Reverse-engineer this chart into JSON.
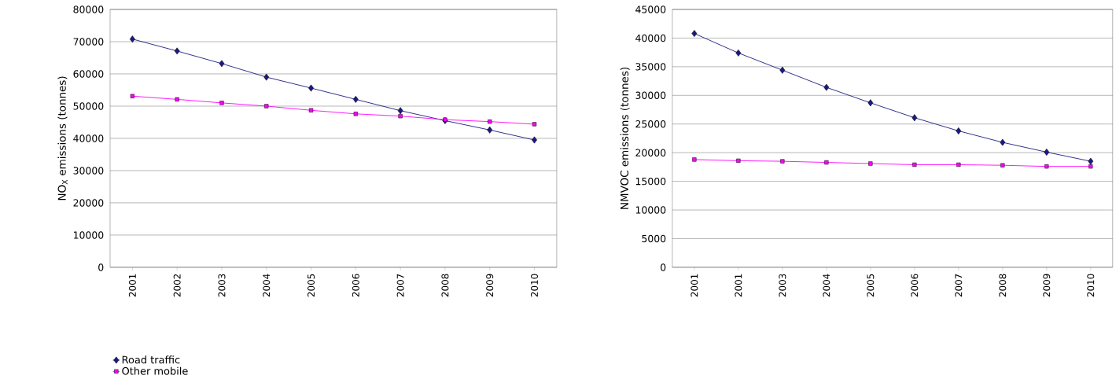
{
  "chart_data": [
    {
      "type": "line",
      "ylabel": "NO$_{X}$ emissions (tonnes)",
      "categories": [
        "2001",
        "2002",
        "2003",
        "2004",
        "2005",
        "2006",
        "2007",
        "2008",
        "2009",
        "2010"
      ],
      "series": [
        {
          "name": "Road traffic",
          "color": "#1a1a80",
          "marker": "diamond",
          "values": [
            70800,
            67100,
            63200,
            59000,
            55600,
            52100,
            48600,
            45500,
            42600,
            39500
          ]
        },
        {
          "name": "Other mobile",
          "color": "#ff00ff",
          "marker": "square",
          "values": [
            53100,
            52100,
            51000,
            50000,
            48700,
            47600,
            46900,
            45800,
            45200,
            44400
          ]
        }
      ],
      "ylim": [
        0,
        80000
      ],
      "yticks": [
        0,
        10000,
        20000,
        30000,
        40000,
        50000,
        60000,
        70000,
        80000
      ],
      "grid": "y",
      "legend": "bottom"
    },
    {
      "type": "line",
      "ylabel": "NMVOC emissions (tonnes)",
      "categories": [
        "2001",
        "2001",
        "2003",
        "2004",
        "2005",
        "2006",
        "2007",
        "2008",
        "2009",
        "2010"
      ],
      "series": [
        {
          "color": "#1a1a80",
          "marker": "diamond",
          "values": [
            40800,
            37400,
            34400,
            31400,
            28700,
            26100,
            23800,
            21800,
            20100,
            18500
          ]
        },
        {
          "color": "#ff00ff",
          "marker": "square",
          "values": [
            18800,
            18600,
            18500,
            18300,
            18100,
            17900,
            17900,
            17800,
            17600,
            17600
          ]
        }
      ],
      "ylim": [
        0,
        45000
      ],
      "yticks": [
        0,
        5000,
        10000,
        15000,
        20000,
        25000,
        30000,
        35000,
        40000,
        45000
      ],
      "grid": "y"
    }
  ]
}
